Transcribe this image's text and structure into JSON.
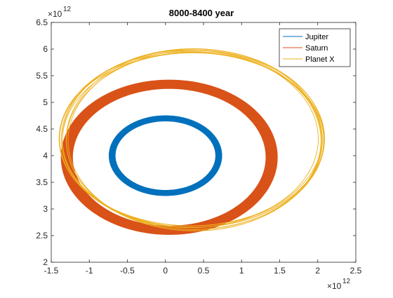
{
  "chart_data": {
    "type": "line",
    "title": "8000-8400 year",
    "xlabel": "",
    "ylabel": "",
    "xlim": [
      -1.5,
      2.5
    ],
    "ylim": [
      2,
      6.5
    ],
    "x_scale_label": "×10",
    "x_scale_exp": "12",
    "y_scale_label": "×10",
    "y_scale_exp": "12",
    "x_ticks": [
      -1.5,
      -1,
      -0.5,
      0,
      0.5,
      1,
      1.5,
      2,
      2.5
    ],
    "x_tick_labels": [
      "-1.5",
      "-1",
      "-0.5",
      "0",
      "0.5",
      "1",
      "1.5",
      "2",
      "2.5"
    ],
    "y_ticks": [
      2,
      2.5,
      3,
      3.5,
      4,
      4.5,
      5,
      5.5,
      6,
      6.5
    ],
    "y_tick_labels": [
      "2",
      "2.5",
      "3",
      "3.5",
      "4",
      "4.5",
      "5",
      "5.5",
      "6",
      "6.5"
    ],
    "grid": false,
    "legend_position": "top-right",
    "series": [
      {
        "name": "Jupiter",
        "color": "#0072BD",
        "orbit": {
          "cx": 0.0,
          "cy": 4.0,
          "rx_min": 0.66,
          "rx_max": 0.74,
          "ry_min": 0.65,
          "ry_max": 0.75,
          "rings": 60
        }
      },
      {
        "name": "Saturn",
        "color": "#D95319",
        "orbit": {
          "cx": 0.05,
          "cy": 3.97,
          "rx_min": 1.27,
          "rx_max": 1.42,
          "ry_min": 1.29,
          "ry_max": 1.45,
          "rings": 40
        }
      },
      {
        "name": "Planet X",
        "color": "#EDB120",
        "orbit": {
          "cx": 0.35,
          "cy": 4.3,
          "rx": 1.7,
          "ry": 1.7,
          "drift": 0.04,
          "rings": 9
        }
      }
    ]
  }
}
